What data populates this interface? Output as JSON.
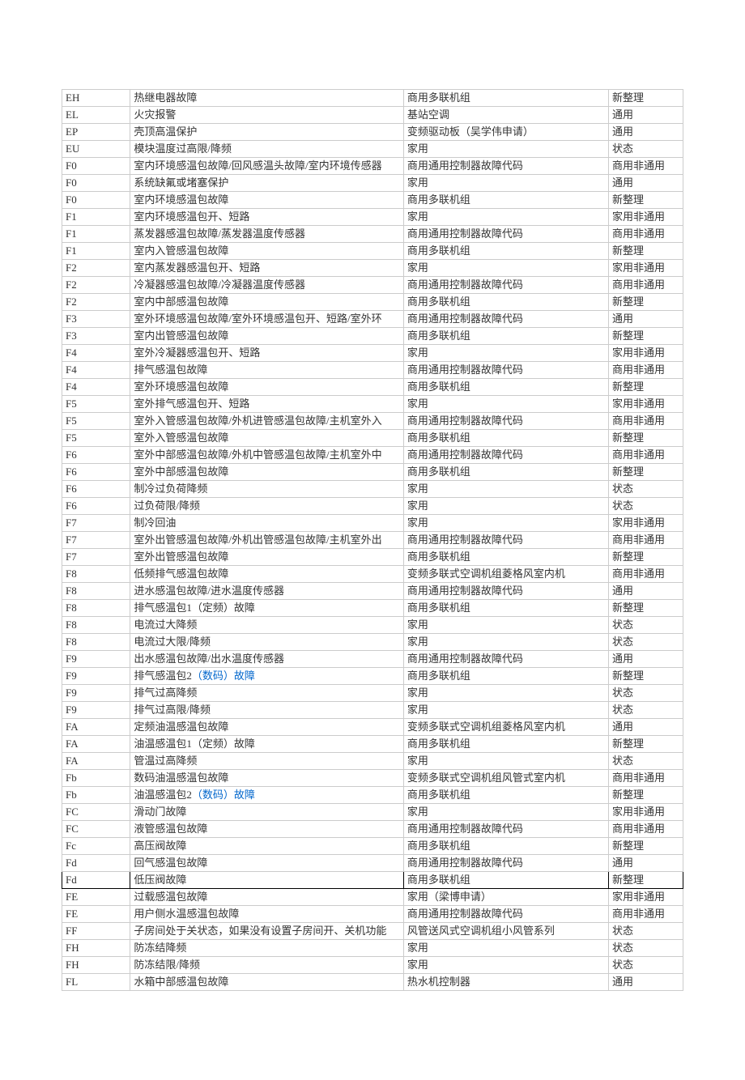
{
  "table": {
    "columns": [
      "code",
      "description",
      "category",
      "status"
    ],
    "border_color": "#cccccc",
    "font_size": 13,
    "text_color": "#333333",
    "link_color": "#0066cc",
    "highlight_border": "#000000",
    "rows": [
      {
        "code": "EH",
        "desc": "热继电器故障",
        "cat": "商用多联机组",
        "stat": "新整理"
      },
      {
        "code": "EL",
        "desc": "火灾报警",
        "cat": "基站空调",
        "stat": "通用"
      },
      {
        "code": "EP",
        "desc": "壳顶高温保护",
        "cat": "变频驱动板（吴学伟申请）",
        "stat": "通用"
      },
      {
        "code": "EU",
        "desc": "模块温度过高限/降频",
        "cat": "家用",
        "stat": "状态"
      },
      {
        "code": "F0",
        "desc": "室内环境感温包故障/回风感温头故障/室内环境传感器",
        "cat": "商用通用控制器故障代码",
        "stat": "商用非通用"
      },
      {
        "code": "F0",
        "desc": "系统缺氟或堵塞保护",
        "cat": "家用",
        "stat": "通用"
      },
      {
        "code": "F0",
        "desc": "室内环境感温包故障",
        "cat": "商用多联机组",
        "stat": "新整理"
      },
      {
        "code": "F1",
        "desc": "室内环境感温包开、短路",
        "cat": "家用",
        "stat": "家用非通用"
      },
      {
        "code": "F1",
        "desc": "蒸发器感温包故障/蒸发器温度传感器",
        "cat": "商用通用控制器故障代码",
        "stat": "商用非通用"
      },
      {
        "code": "F1",
        "desc": "室内入管感温包故障",
        "cat": "商用多联机组",
        "stat": "新整理"
      },
      {
        "code": "F2",
        "desc": "室内蒸发器感温包开、短路",
        "cat": "家用",
        "stat": "家用非通用"
      },
      {
        "code": "F2",
        "desc": "冷凝器感温包故障/冷凝器温度传感器",
        "cat": "商用通用控制器故障代码",
        "stat": "商用非通用"
      },
      {
        "code": "F2",
        "desc": "室内中部感温包故障",
        "cat": "商用多联机组",
        "stat": "新整理"
      },
      {
        "code": "F3",
        "desc": "室外环境感温包故障/室外环境感温包开、短路/室外环",
        "cat": "商用通用控制器故障代码",
        "stat": "通用"
      },
      {
        "code": "F3",
        "desc": "室内出管感温包故障",
        "cat": "商用多联机组",
        "stat": "新整理"
      },
      {
        "code": "F4",
        "desc": "室外冷凝器感温包开、短路",
        "cat": "家用",
        "stat": "家用非通用"
      },
      {
        "code": "F4",
        "desc": "排气感温包故障",
        "cat": "商用通用控制器故障代码",
        "stat": "商用非通用"
      },
      {
        "code": "F4",
        "desc": "室外环境感温包故障",
        "cat": "商用多联机组",
        "stat": "新整理"
      },
      {
        "code": "F5",
        "desc": "室外排气感温包开、短路",
        "cat": "家用",
        "stat": "家用非通用"
      },
      {
        "code": "F5",
        "desc": "室外入管感温包故障/外机进管感温包故障/主机室外入",
        "cat": "商用通用控制器故障代码",
        "stat": "商用非通用"
      },
      {
        "code": "F5",
        "desc": "室外入管感温包故障",
        "cat": "商用多联机组",
        "stat": "新整理"
      },
      {
        "code": "F6",
        "desc": "室外中部感温包故障/外机中管感温包故障/主机室外中",
        "cat": "商用通用控制器故障代码",
        "stat": "商用非通用"
      },
      {
        "code": "F6",
        "desc": "室外中部感温包故障",
        "cat": "商用多联机组",
        "stat": "新整理"
      },
      {
        "code": "F6",
        "desc": "制冷过负荷降频",
        "cat": "家用",
        "stat": "状态"
      },
      {
        "code": "F6",
        "desc": "过负荷限/降频",
        "cat": "家用",
        "stat": "状态"
      },
      {
        "code": "F7",
        "desc": "制冷回油",
        "cat": "家用",
        "stat": "家用非通用"
      },
      {
        "code": "F7",
        "desc": "室外出管感温包故障/外机出管感温包故障/主机室外出",
        "cat": "商用通用控制器故障代码",
        "stat": "商用非通用"
      },
      {
        "code": "F7",
        "desc": "室外出管感温包故障",
        "cat": "商用多联机组",
        "stat": "新整理"
      },
      {
        "code": "F8",
        "desc": "低频排气感温包故障",
        "cat": "变频多联式空调机组菱格风室内机",
        "stat": "商用非通用"
      },
      {
        "code": "F8",
        "desc": "进水感温包故障/进水温度传感器",
        "cat": "商用通用控制器故障代码",
        "stat": "通用"
      },
      {
        "code": "F8",
        "desc": "排气感温包1（定频）故障",
        "cat": "商用多联机组",
        "stat": "新整理"
      },
      {
        "code": "F8",
        "desc": "电流过大降频",
        "cat": "家用",
        "stat": "状态"
      },
      {
        "code": "F8",
        "desc": "电流过大限/降频",
        "cat": "家用",
        "stat": "状态"
      },
      {
        "code": "F9",
        "desc": "出水感温包故障/出水温度传感器",
        "cat": "商用通用控制器故障代码",
        "stat": "通用"
      },
      {
        "code": "F9",
        "desc_parts": [
          {
            "t": "排气感温包2"
          },
          {
            "t": "（数码）故障",
            "link": true
          }
        ],
        "cat": "商用多联机组",
        "stat": "新整理"
      },
      {
        "code": "F9",
        "desc": "排气过高降频",
        "cat": "家用",
        "stat": "状态"
      },
      {
        "code": "F9",
        "desc": "排气过高限/降频",
        "cat": "家用",
        "stat": "状态"
      },
      {
        "code": "FA",
        "desc": "定频油温感温包故障",
        "cat": "变频多联式空调机组菱格风室内机",
        "stat": "通用"
      },
      {
        "code": "FA",
        "desc": "油温感温包1（定频）故障",
        "cat": "商用多联机组",
        "stat": "新整理"
      },
      {
        "code": "FA",
        "desc": "管温过高降频",
        "cat": "家用",
        "stat": "状态"
      },
      {
        "code": "Fb",
        "desc": "数码油温感温包故障",
        "cat": "变频多联式空调机组风管式室内机",
        "stat": "商用非通用"
      },
      {
        "code": "Fb",
        "desc_parts": [
          {
            "t": "油温感温包2"
          },
          {
            "t": "（数码）故障",
            "link": true
          }
        ],
        "cat": "商用多联机组",
        "stat": "新整理"
      },
      {
        "code": "FC",
        "desc": "滑动门故障",
        "cat": "家用",
        "stat": "家用非通用"
      },
      {
        "code": "FC",
        "desc": "液管感温包故障",
        "cat": "商用通用控制器故障代码",
        "stat": "商用非通用"
      },
      {
        "code": "Fc",
        "desc": "高压阀故障",
        "cat": "商用多联机组",
        "stat": "新整理"
      },
      {
        "code": "Fd",
        "desc": "回气感温包故障",
        "cat": "商用通用控制器故障代码",
        "stat": "通用"
      },
      {
        "code": "Fd",
        "desc": "低压阀故障",
        "cat": "商用多联机组",
        "stat": "新整理",
        "highlight": true
      },
      {
        "code": "FE",
        "desc": "过载感温包故障",
        "cat": "家用（梁博申请）",
        "stat": "家用非通用"
      },
      {
        "code": "FE",
        "desc": "用户侧水温感温包故障",
        "cat": "商用通用控制器故障代码",
        "stat": "商用非通用"
      },
      {
        "code": "FF",
        "desc": "子房间处于关状态，如果没有设置子房间开、关机功能",
        "cat": "风管送风式空调机组小风管系列",
        "stat": "状态"
      },
      {
        "code": "FH",
        "desc": "防冻结降频",
        "cat": "家用",
        "stat": "状态"
      },
      {
        "code": "FH",
        "desc": "防冻结限/降频",
        "cat": "家用",
        "stat": "状态"
      },
      {
        "code": "FL",
        "desc": "水箱中部感温包故障",
        "cat": "热水机控制器",
        "stat": "通用"
      }
    ]
  }
}
